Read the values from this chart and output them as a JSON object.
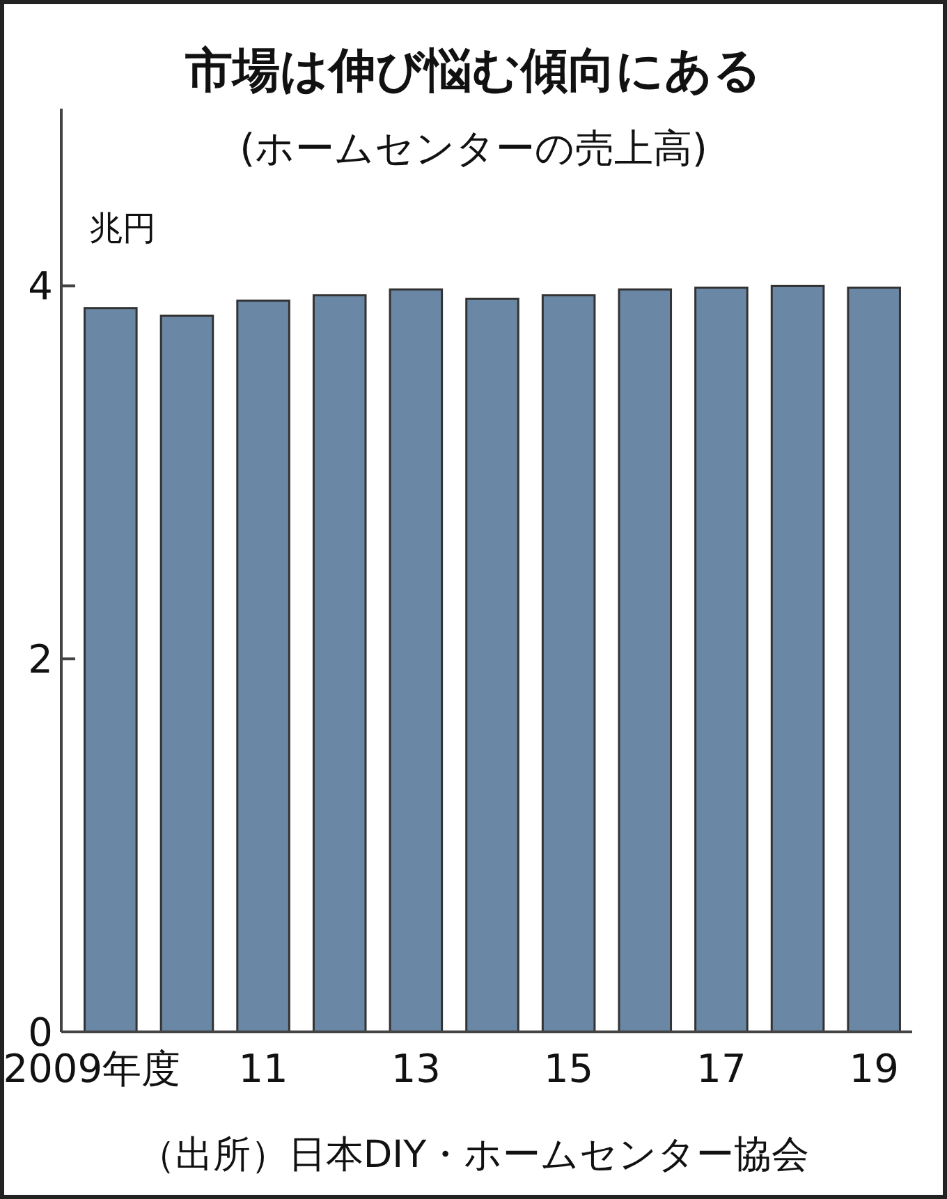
{
  "chart_data": {
    "type": "bar",
    "title": "市場は伸び悩む傾向にある",
    "subtitle": "(ホームセンターの売上高)",
    "ylabel": "兆円",
    "categories": [
      "2009年度",
      null,
      "11",
      null,
      "13",
      null,
      "15",
      null,
      "17",
      null,
      "19"
    ],
    "values": [
      3.88,
      3.84,
      3.92,
      3.95,
      3.98,
      3.93,
      3.95,
      3.98,
      3.99,
      4.0,
      3.99
    ],
    "color": "#6a88a6",
    "ylim": [
      0,
      4.95
    ],
    "yticks": [
      0,
      2,
      4
    ],
    "grid": false,
    "annotations": [
      "（出所）日本DIY・ホームセンター協会"
    ]
  }
}
